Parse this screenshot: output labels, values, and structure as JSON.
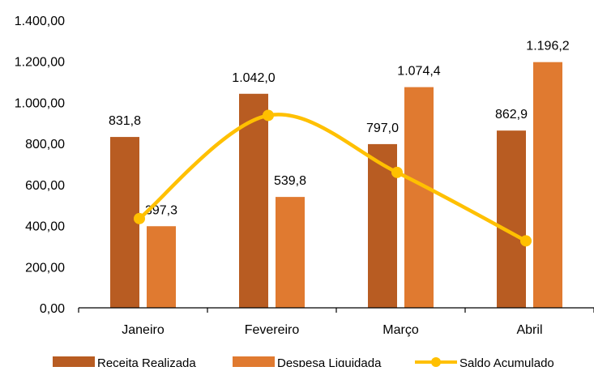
{
  "chart_data": {
    "type": "bar",
    "categories": [
      "Janeiro",
      "Fevereiro",
      "Março",
      "Abril"
    ],
    "series": [
      {
        "name": "Receita Realizada",
        "kind": "bar",
        "color": "#B85C22",
        "values": [
          831.8,
          1042.0,
          797.0,
          862.9
        ],
        "labels": [
          "831,8",
          "1.042,0",
          "797,0",
          "862,9"
        ]
      },
      {
        "name": "Despesa Liquidada",
        "kind": "bar",
        "color": "#E07A30",
        "values": [
          397.3,
          539.8,
          1074.4,
          1196.2
        ],
        "labels": [
          "397,3",
          "539,8",
          "1.074,4",
          "1.196,2"
        ]
      },
      {
        "name": "Saldo Acumulado",
        "kind": "line",
        "smooth": true,
        "color": "#FFC000",
        "values": [
          434.5,
          936.7,
          659.3,
          326.0
        ]
      }
    ],
    "y_ticks": [
      0,
      200,
      400,
      600,
      800,
      1000,
      1200,
      1400
    ],
    "y_tick_labels": [
      "0,00",
      "200,00",
      "400,00",
      "600,00",
      "800,00",
      "1.000,00",
      "1.200,00",
      "1.400,00"
    ],
    "ylim": [
      0,
      1400
    ],
    "title": "",
    "xlabel": "",
    "ylabel": "",
    "grid": false,
    "legend_position": "bottom"
  }
}
